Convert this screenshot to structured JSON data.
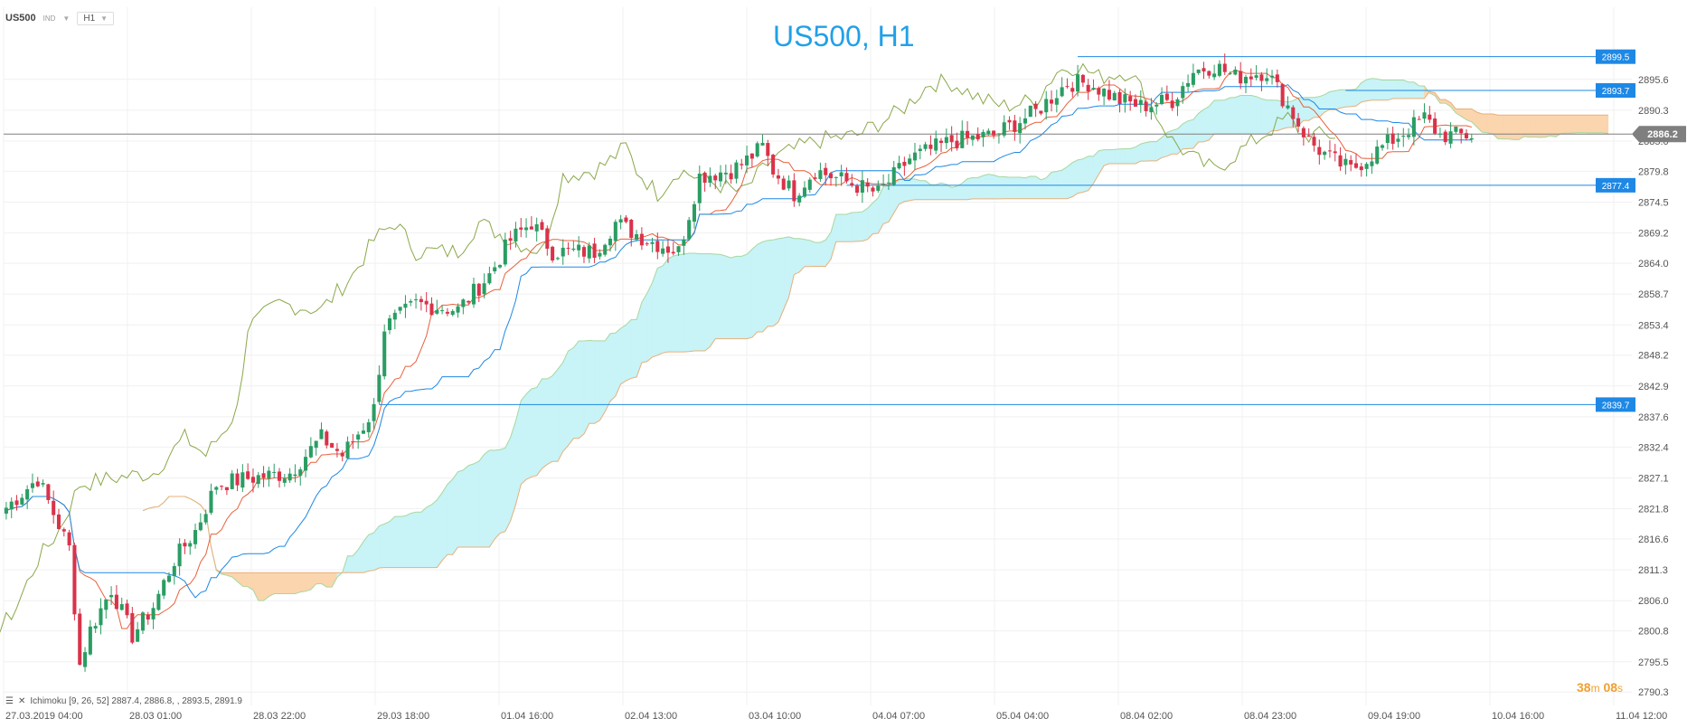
{
  "toolbar": {
    "symbol": "US500",
    "market": "IND",
    "timeframe": "H1"
  },
  "title": "US500, H1",
  "indicator_label": "Ichimoku  [9, 26, 52]  2887.4,  2886.8,  ,  2893.5,  2891.9",
  "timer": {
    "minutes": "38",
    "m": "m",
    "seconds": "08",
    "s": "s"
  },
  "chart_data": {
    "type": "candlestick",
    "title": "US500, H1",
    "ylim": [
      2788,
      2908
    ],
    "y_ticks": [
      "2895.6",
      "2890.3",
      "2885.0",
      "2879.8",
      "2874.5",
      "2869.2",
      "2864.0",
      "2858.7",
      "2853.4",
      "2848.2",
      "2842.9",
      "2837.6",
      "2832.4",
      "2827.1",
      "2821.8",
      "2816.6",
      "2811.3",
      "2806.0",
      "2800.8",
      "2795.5",
      "2790.3"
    ],
    "x_ticks": [
      "27.03.2019  04:00",
      "28.03  01:00",
      "28.03  22:00",
      "29.03  18:00",
      "01.04  16:00",
      "02.04  13:00",
      "03.04  10:00",
      "04.04  07:00",
      "05.04  04:00",
      "08.04  02:00",
      "08.04  23:00",
      "09.04  19:00",
      "10.04  16:00",
      "11.04  12:00"
    ],
    "current_price": {
      "value": 2886.2,
      "label": "2886.2",
      "color": "#7f7f7f"
    },
    "price_lines": [
      {
        "value": 2899.5,
        "label": "2899.5",
        "start_bar": 204
      },
      {
        "value": 2893.7,
        "label": "2893.7",
        "start_bar": 255
      },
      {
        "value": 2877.4,
        "label": "2877.4",
        "start_bar": 160
      },
      {
        "value": 2839.7,
        "label": "2839.7",
        "start_bar": 71
      }
    ],
    "bars_visible": 280,
    "bar_count_axis": 310,
    "anchors": [
      [
        0,
        2822
      ],
      [
        6,
        2827
      ],
      [
        12,
        2815
      ],
      [
        14,
        2795
      ],
      [
        16,
        2801
      ],
      [
        20,
        2808
      ],
      [
        24,
        2800
      ],
      [
        28,
        2805
      ],
      [
        32,
        2813
      ],
      [
        36,
        2818
      ],
      [
        40,
        2826
      ],
      [
        46,
        2827
      ],
      [
        54,
        2828
      ],
      [
        60,
        2834
      ],
      [
        64,
        2831
      ],
      [
        68,
        2836
      ],
      [
        70,
        2839
      ],
      [
        72,
        2853
      ],
      [
        78,
        2857
      ],
      [
        86,
        2856
      ],
      [
        92,
        2862
      ],
      [
        96,
        2868
      ],
      [
        100,
        2871
      ],
      [
        104,
        2866
      ],
      [
        112,
        2866
      ],
      [
        116,
        2871
      ],
      [
        122,
        2868
      ],
      [
        128,
        2866
      ],
      [
        132,
        2879
      ],
      [
        138,
        2880
      ],
      [
        140,
        2881
      ],
      [
        144,
        2884
      ],
      [
        146,
        2880
      ],
      [
        150,
        2876
      ],
      [
        154,
        2880
      ],
      [
        160,
        2878
      ],
      [
        166,
        2876
      ],
      [
        172,
        2882
      ],
      [
        180,
        2885
      ],
      [
        188,
        2886
      ],
      [
        196,
        2890
      ],
      [
        202,
        2895
      ],
      [
        206,
        2895
      ],
      [
        212,
        2892
      ],
      [
        216,
        2891
      ],
      [
        222,
        2892
      ],
      [
        226,
        2897
      ],
      [
        230,
        2898
      ],
      [
        234,
        2896
      ],
      [
        240,
        2897
      ],
      [
        244,
        2891
      ],
      [
        248,
        2885
      ],
      [
        252,
        2882
      ],
      [
        256,
        2880
      ],
      [
        262,
        2884
      ],
      [
        270,
        2889
      ],
      [
        273,
        2886
      ]
    ],
    "colors": {
      "up": "#2a9d63",
      "down": "#d9334a",
      "tenkan": "#e8603c",
      "kijun": "#1e88e5",
      "chikou": "#8aa84a",
      "cloud_bull": "#c8f3f7",
      "cloud_bear": "#fbd5ad",
      "price_line": "#1e88e5",
      "label_bg": "#1e88e5"
    }
  }
}
